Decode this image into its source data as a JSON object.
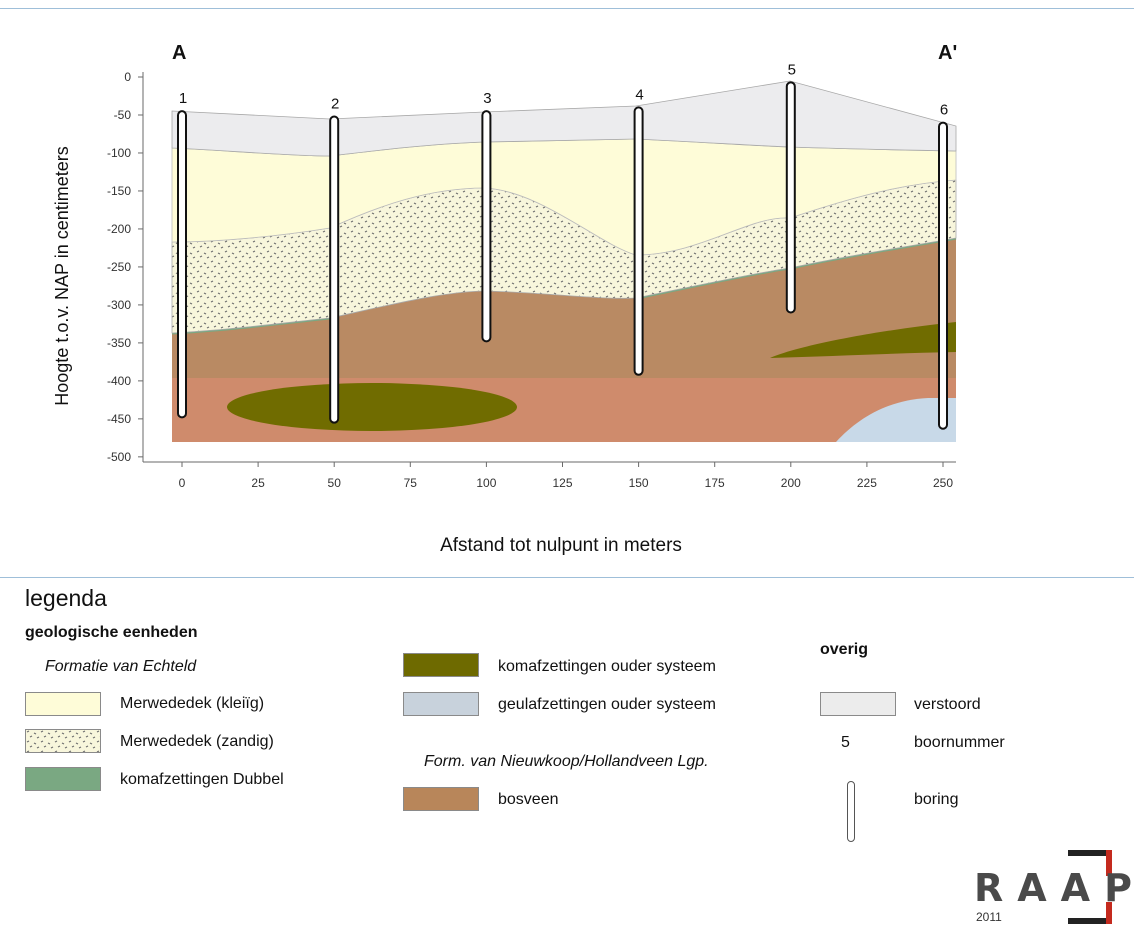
{
  "section": {
    "label_left": "A",
    "label_right": "A'",
    "ylabel": "Hoogte t.o.v. NAP in centimeters",
    "xlabel": "Afstand tot nulpunt in meters",
    "xlim": [
      -15,
      255
    ],
    "ylim": [
      -505,
      0
    ],
    "yticks": [
      "0",
      "-50",
      "-100",
      "-150",
      "-200",
      "-250",
      "-300",
      "-350",
      "-400",
      "-450",
      "-500"
    ],
    "xticks": [
      "0",
      "25",
      "50",
      "75",
      "100",
      "125",
      "150",
      "175",
      "200",
      "225",
      "250"
    ],
    "borings": [
      {
        "label": "1",
        "x": 0,
        "top": -45,
        "bottom": -448
      },
      {
        "label": "2",
        "x": 50,
        "top": -52,
        "bottom": -455
      },
      {
        "label": "3",
        "x": 100,
        "top": -45,
        "bottom": -348
      },
      {
        "label": "4",
        "x": 150,
        "top": -40,
        "bottom": -392
      },
      {
        "label": "5",
        "x": 200,
        "top": -7,
        "bottom": -310
      },
      {
        "label": "6",
        "x": 250,
        "top": -60,
        "bottom": -463
      }
    ]
  },
  "legend": {
    "title": "legenda",
    "group_title": "geologische eenheden",
    "subgroup_echteld": "Formatie van Echteld",
    "items_echteld": [
      {
        "label": "Merwededek (kleiïg)",
        "color": "#fefcd8"
      },
      {
        "label": "Merwededek (zandig)",
        "color": "#f6f5d6"
      },
      {
        "label": "komafzettingen Dubbel",
        "color": "#7aa882"
      }
    ],
    "items_old": [
      {
        "label": "komafzettingen ouder systeem",
        "color": "#6e6a00"
      },
      {
        "label": "geulafzettingen ouder systeem",
        "color": "#c8d2dc"
      }
    ],
    "subgroup_nieuwkoop": "Form. van Nieuwkoop/Hollandveen Lgp.",
    "item_bosveen": {
      "label": "bosveen",
      "color": "#b8865a"
    },
    "overig_title": "overig",
    "item_verstoord": {
      "label": "verstoord",
      "color": "#ececec"
    },
    "item_boornummer": {
      "symbol": "5",
      "label": "boornummer"
    },
    "item_boring": {
      "label": "boring"
    }
  },
  "logo": {
    "text": "RAAP",
    "year": "2011"
  },
  "colors": {
    "verstoord": "#ececee",
    "klei": "#fefcd8",
    "zandig": "#f8f6dc",
    "dubbel": "#7aa882",
    "bosveen": "#b98a63",
    "lower_peat": "#cf8b6c",
    "kom_ouder": "#706c00",
    "geul_ouder": "#c8d9e8"
  }
}
